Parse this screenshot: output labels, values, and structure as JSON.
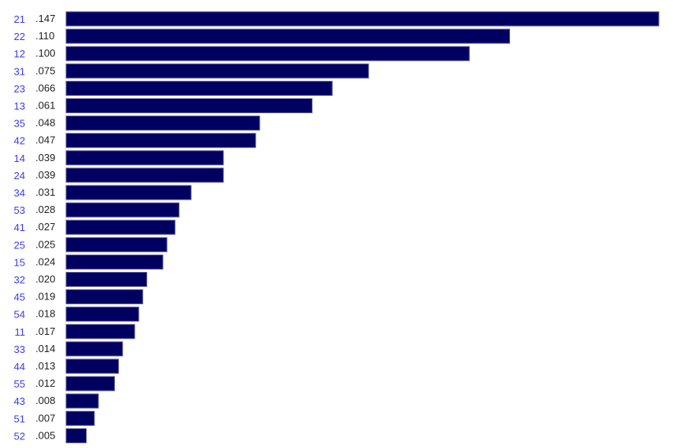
{
  "chart_data": {
    "type": "bar",
    "orientation": "horizontal",
    "title": "",
    "xlabel": "",
    "ylabel": "",
    "categories": [
      "21",
      "22",
      "12",
      "31",
      "23",
      "13",
      "35",
      "42",
      "14",
      "24",
      "34",
      "53",
      "41",
      "25",
      "15",
      "32",
      "45",
      "54",
      "11",
      "33",
      "44",
      "55",
      "43",
      "51",
      "52"
    ],
    "values": [
      0.147,
      0.11,
      0.1,
      0.075,
      0.066,
      0.061,
      0.048,
      0.047,
      0.039,
      0.039,
      0.031,
      0.028,
      0.027,
      0.025,
      0.024,
      0.02,
      0.019,
      0.018,
      0.017,
      0.014,
      0.013,
      0.012,
      0.008,
      0.007,
      0.005
    ],
    "value_labels": [
      ".147",
      ".110",
      ".100",
      ".075",
      ".066",
      ".061",
      ".048",
      ".047",
      ".039",
      ".039",
      ".031",
      ".028",
      ".027",
      ".025",
      ".024",
      ".020",
      ".019",
      ".018",
      ".017",
      ".014",
      ".013",
      ".012",
      ".008",
      ".007",
      ".005"
    ],
    "xlim": [
      0,
      0.147
    ],
    "grid": false,
    "colors": {
      "bar": "#000060",
      "category_label": "#3a3aee",
      "value_label": "#222222"
    }
  }
}
